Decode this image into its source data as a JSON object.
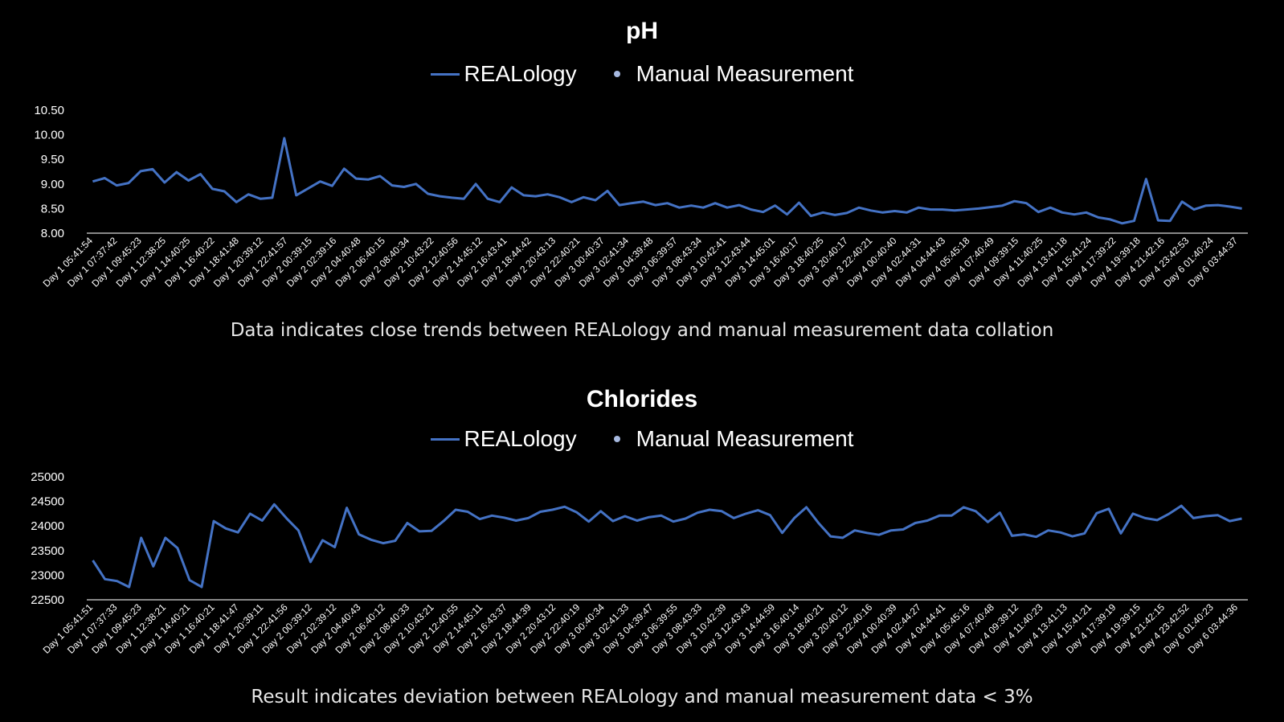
{
  "chart_data": [
    {
      "type": "line",
      "title": "pH",
      "legend": [
        "REALology",
        "Manual Measurement"
      ],
      "caption": "Data indicates close trends between REALology and manual measurement data collation",
      "ylim": [
        8.0,
        10.5
      ],
      "yticks": [
        "8.00",
        "8.50",
        "9.00",
        "9.50",
        "10.00",
        "10.50"
      ],
      "tick_labels": [
        "Day 1 05:41:54",
        "Day 1 07:37:42",
        "Day 1 09:45:23",
        "Day 1 12:38:25",
        "Day 1 14:40:25",
        "Day 1 16:40:22",
        "Day 1 18:41:48",
        "Day 1 20:39:12",
        "Day 1 22:41:57",
        "Day 2 00:39:15",
        "Day 2 02:39:16",
        "Day 2 04:40:48",
        "Day 2 06:40:15",
        "Day 2 08:40:34",
        "Day 2 10:43:22",
        "Day 2 12:40:56",
        "Day 2 14:45:12",
        "Day 2 16:43:41",
        "Day 2 18:44:42",
        "Day 2 20:43:13",
        "Day 2 22:40:21",
        "Day 3 00:40:37",
        "Day 3 02:41:34",
        "Day 3 04:39:48",
        "Day 3 06:39:57",
        "Day 3 08:43:34",
        "Day 3 10:42:41",
        "Day 3 12:43:44",
        "Day 3 14:45:01",
        "Day 3 16:40:17",
        "Day 3 18:40:25",
        "Day 3 20:40:17",
        "Day 3 22:40:21",
        "Day 4 00:40:40",
        "Day 4 02:44:31",
        "Day 4 04:44:43",
        "Day 4 05:45:18",
        "Day 4 07:40:49",
        "Day 4 09:39:15",
        "Day 4 11:40:25",
        "Day 4 13:41:18",
        "Day 4 15:41:24",
        "Day 4 17:39:22",
        "Day 4 19:39:18",
        "Day 4 21:42:16",
        "Day 4 23:42:53",
        "Day 6 01:40:24",
        "Day 6 03:44:37"
      ],
      "series": [
        {
          "name": "REALology",
          "color": "#4472c4",
          "values": [
            9.05,
            9.12,
            8.97,
            9.02,
            9.26,
            9.3,
            9.03,
            9.24,
            9.07,
            9.2,
            8.9,
            8.85,
            8.63,
            8.79,
            8.7,
            8.72,
            9.93,
            8.77,
            8.91,
            9.05,
            8.96,
            9.31,
            9.11,
            9.09,
            9.16,
            8.97,
            8.94,
            9.0,
            8.8,
            8.75,
            8.72,
            8.7,
            9.0,
            8.7,
            8.63,
            8.93,
            8.77,
            8.75,
            8.79,
            8.73,
            8.63,
            8.73,
            8.67,
            8.86,
            8.57,
            8.61,
            8.64,
            8.57,
            8.61,
            8.52,
            8.56,
            8.52,
            8.61,
            8.52,
            8.57,
            8.48,
            8.43,
            8.56,
            8.38,
            8.62,
            8.35,
            8.42,
            8.37,
            8.41,
            8.52,
            8.46,
            8.42,
            8.45,
            8.42,
            8.52,
            8.48,
            8.48,
            8.46,
            8.48,
            8.5,
            8.53,
            8.56,
            8.65,
            8.61,
            8.43,
            8.52,
            8.42,
            8.38,
            8.42,
            8.32,
            8.28,
            8.2,
            8.25,
            9.1,
            8.26,
            8.25,
            8.64,
            8.48,
            8.56,
            8.57,
            8.54,
            8.5
          ]
        },
        {
          "name": "Manual Measurement",
          "color": "#a7b9e0",
          "values": []
        }
      ]
    },
    {
      "type": "line",
      "title": "Chlorides",
      "legend": [
        "REALology",
        "Manual Measurement"
      ],
      "caption": "Result indicates deviation between REALology and manual measurement data < 3%",
      "ylim": [
        22500,
        25000
      ],
      "yticks": [
        "22500",
        "23000",
        "23500",
        "24000",
        "24500",
        "25000"
      ],
      "tick_labels": [
        "Day 1 05:41:51",
        "Day 1 07:37:33",
        "Day 1 09:45:23",
        "Day 1 12:38:21",
        "Day 1 14:40:21",
        "Day 1 16:40:21",
        "Day 1 18:41:47",
        "Day 1 20:39:11",
        "Day 1 22:41:56",
        "Day 2 00:39:12",
        "Day 2 02:39:12",
        "Day 2 04:40:43",
        "Day 2 06:40:12",
        "Day 2 08:40:33",
        "Day 2 10:43:21",
        "Day 2 12:40:55",
        "Day 2 14:45:11",
        "Day 2 16:43:37",
        "Day 2 18:44:39",
        "Day 2 20:43:12",
        "Day 2 22:40:19",
        "Day 3 00:40:34",
        "Day 3 02:41:33",
        "Day 3 04:39:47",
        "Day 3 06:39:55",
        "Day 3 08:43:33",
        "Day 3 10:42:39",
        "Day 3 12:43:43",
        "Day 3 14:44:59",
        "Day 3 16:40:14",
        "Day 3 18:40:21",
        "Day 3 20:40:12",
        "Day 3 22:40:16",
        "Day 4 00:40:39",
        "Day 4 02:44:27",
        "Day 4 04:44:41",
        "Day 4 05:45:16",
        "Day 4 07:40:48",
        "Day 4 09:39:12",
        "Day 4 11:40:23",
        "Day 4 13:41:13",
        "Day 4 15:41:21",
        "Day 4 17:39:19",
        "Day 4 19:39:15",
        "Day 4 21:42:15",
        "Day 4 23:42:52",
        "Day 6 01:40:23",
        "Day 6 03:44:36"
      ],
      "series": [
        {
          "name": "REALology",
          "color": "#4472c4",
          "values": [
            23300,
            22920,
            22880,
            22760,
            23760,
            23180,
            23760,
            23550,
            22900,
            22760,
            24100,
            23950,
            23870,
            24250,
            24110,
            24440,
            24160,
            23910,
            23270,
            23710,
            23570,
            24370,
            23830,
            23720,
            23650,
            23700,
            24060,
            23890,
            23900,
            24100,
            24330,
            24290,
            24140,
            24210,
            24170,
            24110,
            24160,
            24290,
            24330,
            24390,
            24280,
            24090,
            24300,
            24100,
            24200,
            24110,
            24180,
            24210,
            24090,
            24150,
            24270,
            24330,
            24300,
            24160,
            24250,
            24320,
            24220,
            23860,
            24160,
            24380,
            24060,
            23790,
            23760,
            23910,
            23860,
            23820,
            23910,
            23930,
            24060,
            24110,
            24210,
            24210,
            24380,
            24300,
            24080,
            24270,
            23800,
            23830,
            23780,
            23910,
            23870,
            23790,
            23850,
            24260,
            24350,
            23850,
            24250,
            24160,
            24120,
            24250,
            24410,
            24160,
            24200,
            24220,
            24100,
            24150
          ]
        },
        {
          "name": "Manual Measurement",
          "color": "#a7b9e0",
          "values": []
        }
      ]
    }
  ]
}
